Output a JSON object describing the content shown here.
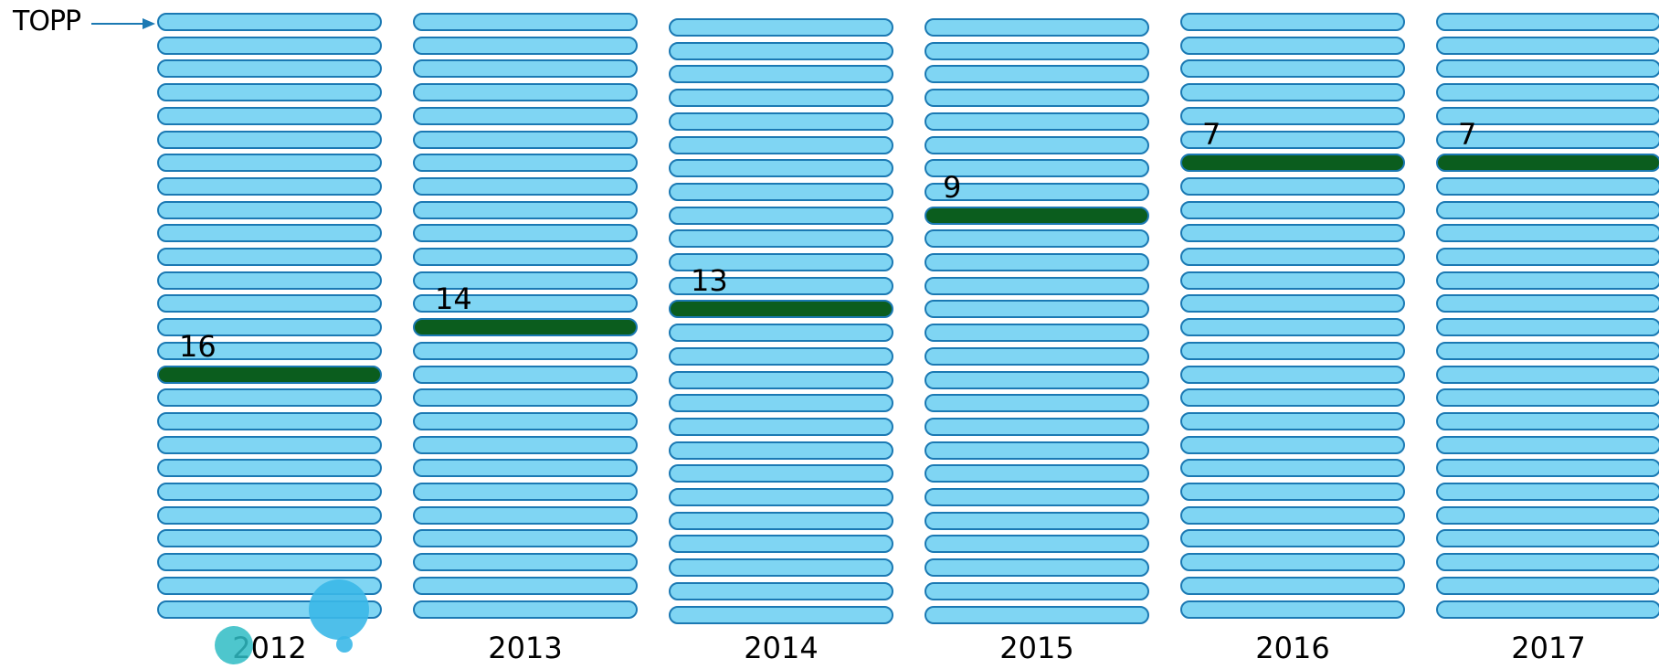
{
  "top_label": "TOPP",
  "colors": {
    "bar_fill": "#7fd5f3",
    "bar_border": "#1b79b3",
    "highlight": "#0b5d1e",
    "arrow": "#1b79b3"
  },
  "columns": [
    {
      "year": "2012",
      "rank": 16
    },
    {
      "year": "2013",
      "rank": 14
    },
    {
      "year": "2014",
      "rank": 13
    },
    {
      "year": "2015",
      "rank": 9
    },
    {
      "year": "2016",
      "rank": 7
    },
    {
      "year": "2017",
      "rank": 7
    }
  ],
  "bars_per_column": 26
}
